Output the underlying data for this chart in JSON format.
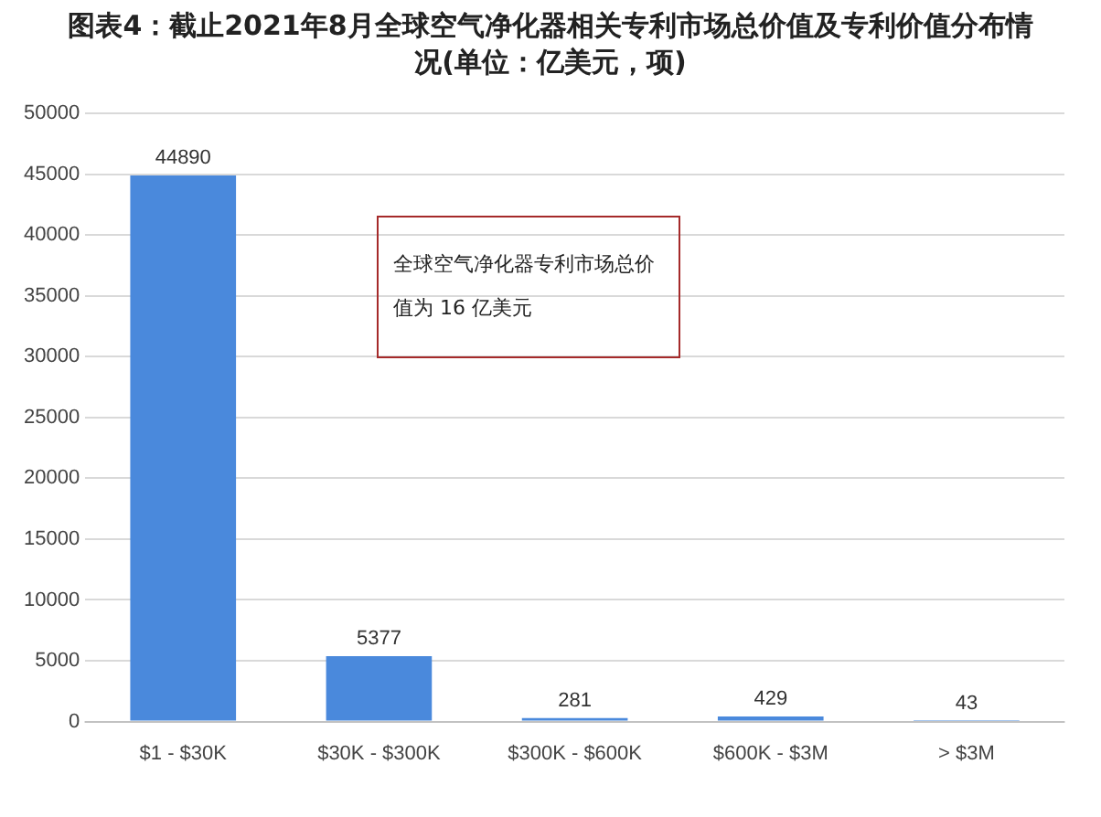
{
  "chart_data": {
    "type": "bar",
    "title": "图表4：截止2021年8月全球空气净化器相关专利市场总价值及专利价值分布情况(单位：亿美元，项)",
    "categories": [
      "$1 - $30K",
      "$30K - $300K",
      "$300K - $600K",
      "$600K - $3M",
      "> $3M"
    ],
    "values": [
      44890,
      5377,
      281,
      429,
      43
    ],
    "color": "#4a89dc",
    "ylim": [
      0,
      50000
    ],
    "yticks": [
      0,
      5000,
      10000,
      15000,
      20000,
      25000,
      30000,
      35000,
      40000,
      45000,
      50000
    ],
    "grid": "y",
    "data_labels": true,
    "annotations": [
      "全球空气净化器专利市场总价值为 16 亿美元"
    ]
  }
}
